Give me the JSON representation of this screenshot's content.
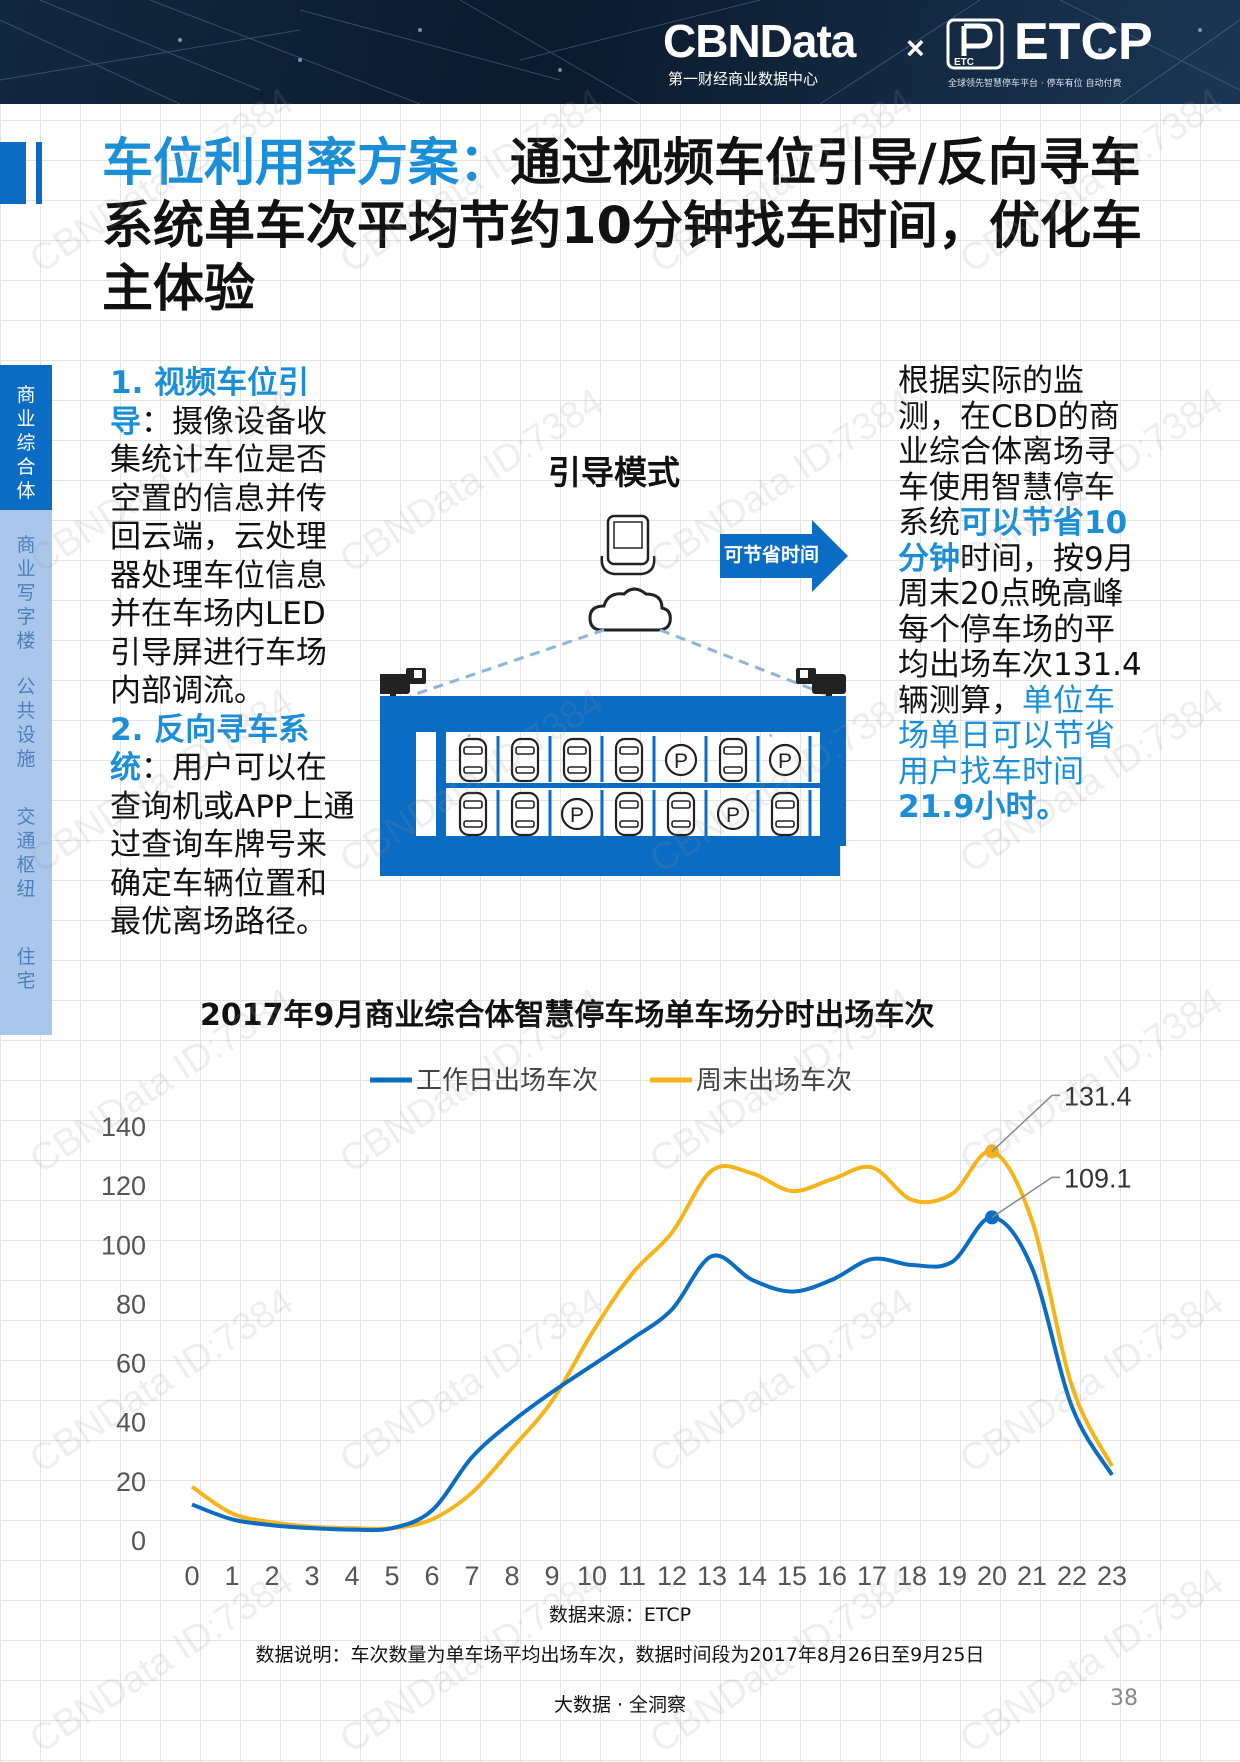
{
  "header": {
    "brand": "CBNData",
    "brand_sub": "第一财经商业数据中心",
    "times": "×",
    "partner": "ETCP",
    "partner_logo_text": "ETC",
    "partner_sub": "全球领先智慧停车平台 · 停车有位 自动付费"
  },
  "title": {
    "blue": "车位利用率方案：",
    "black": "通过视频车位引导/反向寻车系统单车次平均节约10分钟找车时间，优化车主体验"
  },
  "sidenav": [
    "商业综合体",
    "商业写字楼",
    "公共设施",
    "交通枢纽",
    "住宅"
  ],
  "left_text": {
    "h1": "1. 视频车位引导",
    "p1": "：摄像设备收集统计车位是否空置的信息并传回云端，云处理器处理车位信息并在车场内LED引导屏进行车场内部调流。",
    "h2": "2. 反向寻车系统",
    "p2": "：用户可以在查询机或APP上通过查询车牌号来确定车辆位置和最优离场路径。"
  },
  "diagram": {
    "mode_title": "引导模式",
    "arrow_label": "可节省时间",
    "parking_row1": [
      "car",
      "car",
      "car",
      "car",
      "P",
      "car",
      "P"
    ],
    "parking_row2": [
      "car",
      "car",
      "P",
      "car",
      "car",
      "P",
      "car"
    ],
    "parking_symbol": "P"
  },
  "right_text": {
    "t1": "根据实际的监测，在CBD的商业综合体离场寻车使用智慧停车系统",
    "t2": "可以节省10分钟",
    "t3": "时间，按9月周末20点晚高峰每个停车场的平均出场车次131.4辆测算，",
    "t4": "单位车场单日可以节省用户找车时间",
    "t5": "21.9小时。"
  },
  "chart_data": {
    "type": "line",
    "title": "2017年9月商业综合体智慧停车场单车场分时出场车次",
    "categories": [
      "0",
      "1",
      "2",
      "3",
      "4",
      "5",
      "6",
      "7",
      "8",
      "9",
      "10",
      "11",
      "12",
      "13",
      "14",
      "15",
      "16",
      "17",
      "18",
      "19",
      "20",
      "21",
      "22",
      "23"
    ],
    "ylim": [
      0,
      140
    ],
    "yticks": [
      0,
      20,
      40,
      60,
      80,
      100,
      120,
      140
    ],
    "legend_position": "top",
    "series": [
      {
        "name": "工作日出场车次",
        "color": "#0a6cc2",
        "values": [
          12,
          7,
          5,
          4,
          3.5,
          4,
          10,
          28,
          40,
          50,
          59,
          68,
          78,
          96,
          88,
          84,
          88,
          95,
          93,
          94,
          109.1,
          92,
          45,
          22
        ]
      },
      {
        "name": "周末出场车次",
        "color": "#f5b51a",
        "values": [
          18,
          9,
          6,
          4.5,
          4,
          4,
          7,
          16,
          31,
          47,
          70,
          90,
          104,
          125,
          124,
          118,
          122,
          126,
          115,
          117,
          131.4,
          108,
          52,
          25
        ]
      }
    ],
    "annotations": [
      {
        "series": "周末出场车次",
        "x": "20",
        "label": "131.4"
      },
      {
        "series": "工作日出场车次",
        "x": "20",
        "label": "109.1"
      }
    ],
    "grid": true
  },
  "source": "数据来源：ETCP",
  "note": "数据说明：车次数量为单车场平均出场车次，数据时间段为2017年8月26日至9月25日",
  "footer": "大数据 · 全洞察",
  "page_number": "38",
  "watermark": "CBNData ID:7384",
  "colors": {
    "accent": "#0a6cc2",
    "highlight": "#1a8fd8",
    "nav": "#a9c7ea",
    "weekend": "#f5b51a"
  }
}
